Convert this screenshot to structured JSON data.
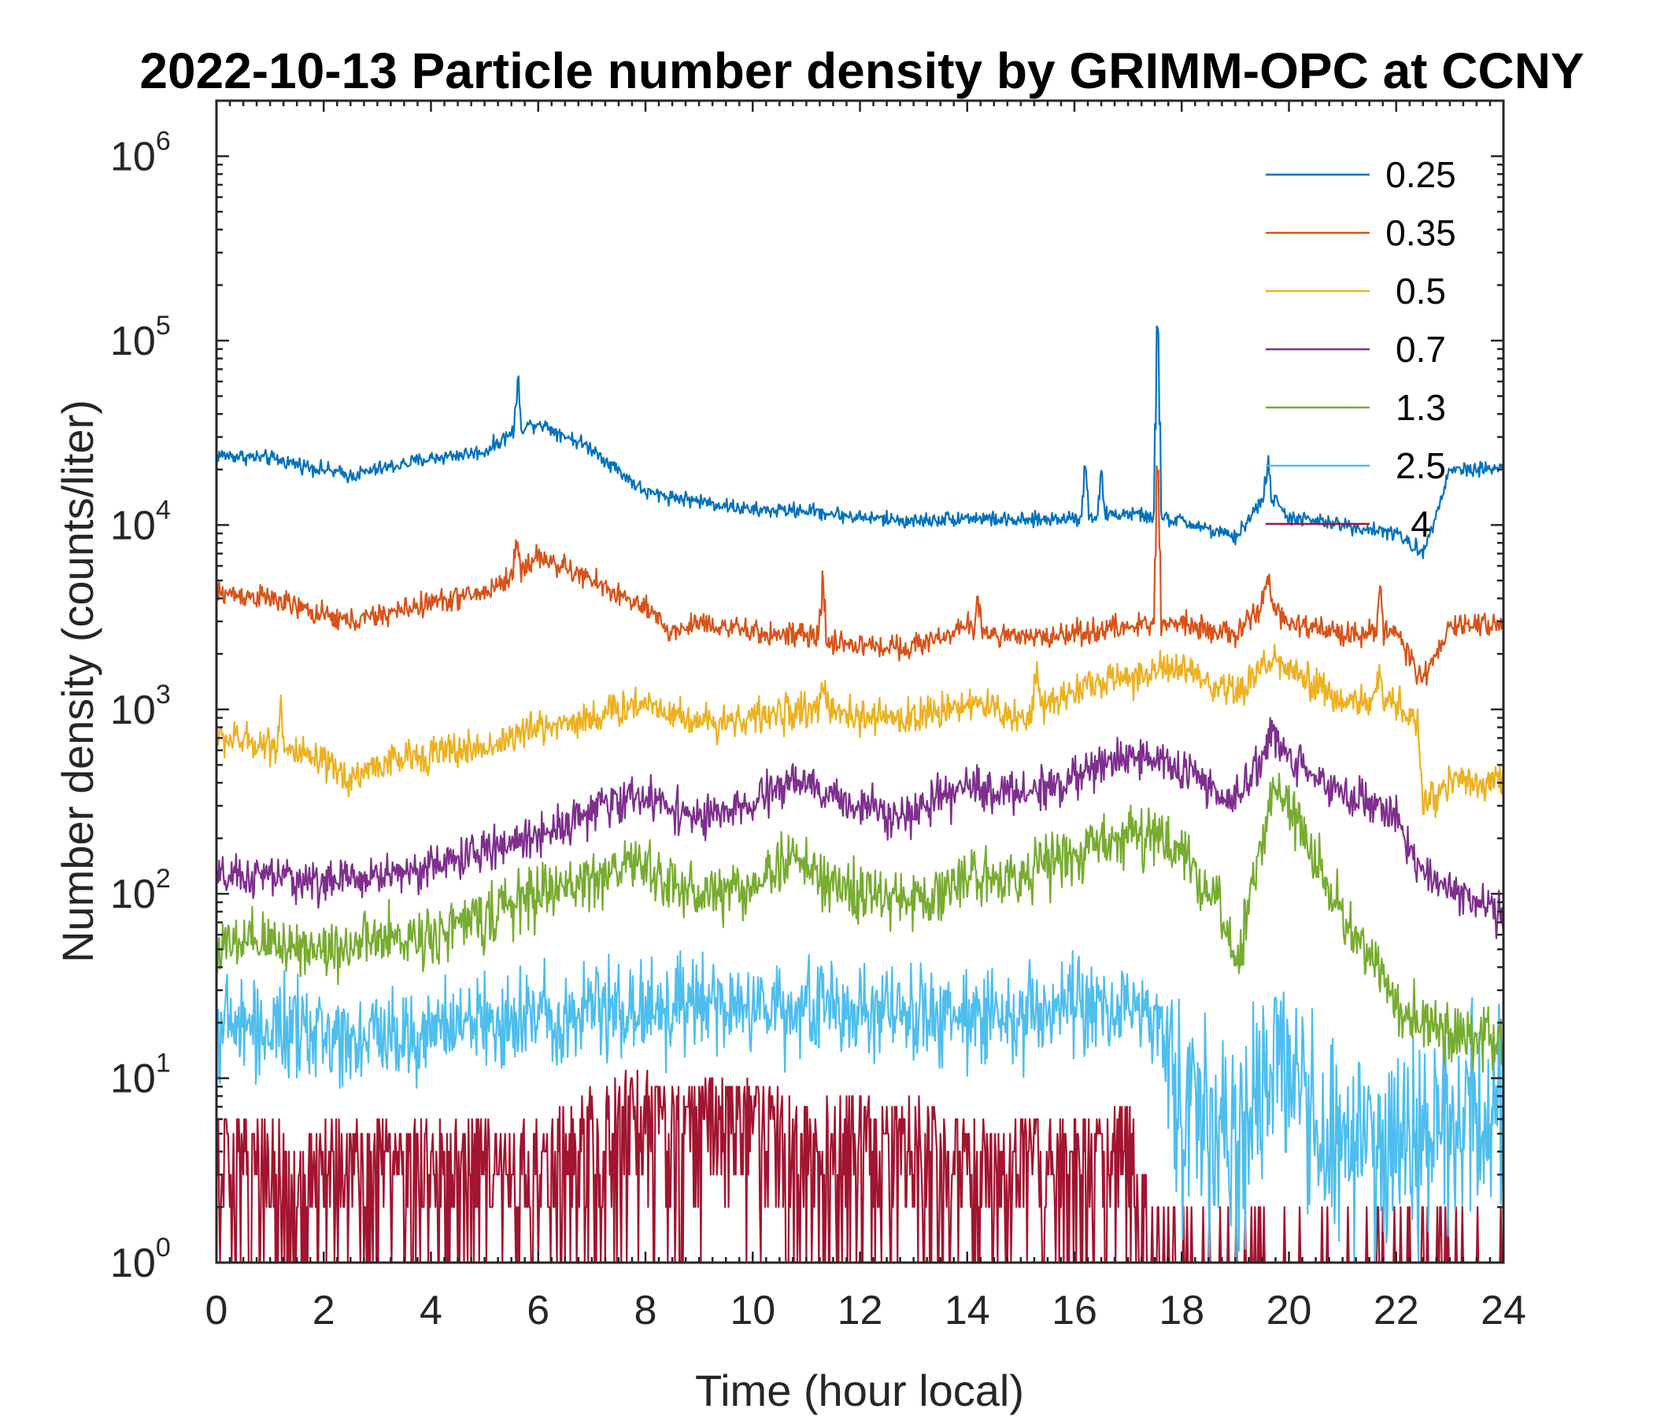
{
  "chart_data": {
    "type": "line",
    "title": "2022-10-13 Particle number density by GRIMM-OPC at CCNY",
    "xlabel": "Time (hour local)",
    "ylabel": "Number density (counts/liter)",
    "xlim": [
      0,
      24
    ],
    "ylim": [
      1,
      2000000
    ],
    "yscale": "log",
    "xticks": [
      0,
      2,
      4,
      6,
      8,
      10,
      12,
      14,
      16,
      18,
      20,
      22,
      24
    ],
    "ytick_base": "10",
    "ytick_exponents": [
      "0",
      "1",
      "2",
      "3",
      "4",
      "5",
      "6"
    ],
    "legend_position": "top-right",
    "grid": false,
    "series": [
      {
        "name": "0.25",
        "color": "#0072BD",
        "x": [
          0,
          1,
          2,
          2.5,
          3,
          4,
          5,
          5.6,
          6,
          7,
          8,
          9,
          10,
          11,
          12,
          13,
          14,
          15,
          16,
          17,
          17.5,
          18,
          19,
          19.6,
          20,
          21,
          22,
          22.5,
          23,
          24
        ],
        "y": [
          24000,
          23000,
          20000,
          18500,
          20000,
          23000,
          25000,
          33000,
          36000,
          26000,
          15000,
          13500,
          12000,
          12000,
          11000,
          10500,
          11000,
          10500,
          11000,
          11500,
          11000,
          10500,
          8500,
          15000,
          11000,
          10000,
          9000,
          7000,
          20000,
          20500
        ],
        "spikes": [
          [
            5.62,
            60000
          ],
          [
            16.2,
            20000
          ],
          [
            16.5,
            18000
          ],
          [
            17.55,
            115000
          ],
          [
            19.6,
            22000
          ]
        ]
      },
      {
        "name": "0.35",
        "color": "#D95319",
        "x": [
          0,
          1,
          2,
          2.5,
          3,
          4,
          5,
          5.6,
          6,
          7,
          8,
          8.5,
          9,
          10,
          11,
          12,
          13,
          14,
          15,
          16,
          17,
          18,
          19,
          19.6,
          20,
          21,
          22,
          22.5,
          23,
          24
        ],
        "y": [
          4300,
          4000,
          3200,
          3000,
          3200,
          3800,
          4300,
          5500,
          6800,
          5000,
          3500,
          2600,
          3000,
          2600,
          2500,
          2200,
          2200,
          2800,
          2400,
          2600,
          2800,
          3000,
          2500,
          4000,
          2900,
          2600,
          2600,
          1400,
          2800,
          3000
        ],
        "spikes": [
          [
            5.6,
            8000
          ],
          [
            11.3,
            5000
          ],
          [
            14.2,
            4200
          ],
          [
            17.55,
            19000
          ],
          [
            19.6,
            5200
          ],
          [
            21.7,
            5000
          ]
        ]
      },
      {
        "name": "0.5",
        "color": "#EDB120",
        "x": [
          0,
          1,
          2,
          2.5,
          3,
          4,
          5,
          6,
          7,
          8,
          9,
          10,
          11,
          12,
          13,
          14,
          15,
          16,
          17,
          18,
          18.5,
          19,
          19.7,
          20,
          21,
          22,
          22.4,
          22.5,
          23,
          24
        ],
        "y": [
          700,
          650,
          500,
          420,
          500,
          580,
          620,
          800,
          900,
          1100,
          850,
          900,
          1000,
          900,
          900,
          1100,
          900,
          1300,
          1500,
          1700,
          1300,
          1200,
          1900,
          1600,
          1100,
          1100,
          800,
          300,
          420,
          400
        ],
        "spikes": [
          [
            1.2,
            1050
          ],
          [
            11.3,
            1600
          ],
          [
            15.3,
            1650
          ],
          [
            21.7,
            1700
          ]
        ]
      },
      {
        "name": "0.7",
        "color": "#7E2F8E",
        "x": [
          0,
          1,
          2,
          3,
          4,
          5,
          6,
          7,
          7.8,
          8.5,
          9,
          10,
          10.7,
          11.5,
          12,
          13,
          14,
          15,
          16,
          17,
          18,
          19,
          19.7,
          20,
          21,
          22,
          22.5,
          23,
          24
        ],
        "y": [
          120,
          125,
          115,
          125,
          140,
          170,
          210,
          280,
          340,
          300,
          250,
          300,
          420,
          330,
          300,
          270,
          380,
          350,
          420,
          580,
          480,
          300,
          750,
          550,
          350,
          270,
          120,
          110,
          75
        ],
        "spikes": []
      },
      {
        "name": "1.3",
        "color": "#77AC30",
        "x": [
          0,
          1,
          2,
          3,
          4,
          5,
          6,
          7,
          7.8,
          8.5,
          9,
          10,
          10.7,
          11.5,
          12,
          13,
          14,
          15,
          16,
          17,
          18,
          18.7,
          19,
          19.7,
          20.3,
          21,
          22,
          22.5,
          23,
          24
        ],
        "y": [
          50,
          55,
          50,
          55,
          60,
          75,
          100,
          120,
          150,
          110,
          100,
          110,
          160,
          110,
          100,
          90,
          120,
          130,
          160,
          220,
          170,
          90,
          35,
          400,
          200,
          80,
          25,
          20,
          18,
          15
        ],
        "spikes": []
      },
      {
        "name": "2.5",
        "color": "#4DBEEE",
        "x": [
          0,
          1,
          2,
          3,
          4,
          5,
          6,
          7,
          8,
          9,
          10,
          11,
          12,
          13,
          14,
          15,
          16,
          17,
          17.5,
          18,
          19,
          19.8,
          20.5,
          21,
          22,
          23,
          24
        ],
        "y": [
          20,
          18,
          17,
          17,
          18,
          20,
          22,
          24,
          24,
          24,
          24,
          24,
          23,
          22,
          22,
          22,
          23,
          25,
          22,
          7,
          4,
          15,
          5,
          5,
          4,
          6,
          7
        ],
        "spikes": []
      },
      {
        "name": "4",
        "color": "#A2142F",
        "x": [
          0,
          1,
          2,
          3,
          4,
          5,
          6,
          6.8,
          7.8,
          8.5,
          9,
          10,
          11,
          12,
          13,
          14,
          15,
          16,
          17,
          17.2,
          18,
          19,
          20,
          21,
          22,
          24
        ],
        "y": [
          3,
          3,
          3,
          3,
          3,
          3,
          3,
          4,
          6,
          5,
          5,
          5,
          4,
          4,
          4,
          3,
          3,
          3,
          4,
          2,
          1,
          1,
          1,
          1,
          1,
          1
        ],
        "spikes": []
      }
    ]
  }
}
